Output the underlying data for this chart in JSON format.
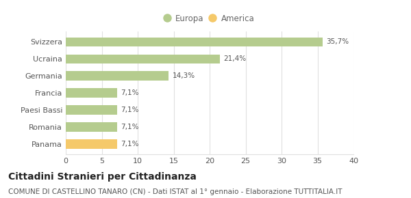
{
  "categories": [
    "Svizzera",
    "Ucraina",
    "Germania",
    "Francia",
    "Paesi Bassi",
    "Romania",
    "Panama"
  ],
  "values": [
    35.7,
    21.4,
    14.3,
    7.1,
    7.1,
    7.1,
    7.1
  ],
  "labels": [
    "35,7%",
    "21,4%",
    "14,3%",
    "7,1%",
    "7,1%",
    "7,1%",
    "7,1%"
  ],
  "colors": [
    "#b5cc8e",
    "#b5cc8e",
    "#b5cc8e",
    "#b5cc8e",
    "#b5cc8e",
    "#b5cc8e",
    "#f5c96a"
  ],
  "legend_items": [
    {
      "label": "Europa",
      "color": "#b5cc8e"
    },
    {
      "label": "America",
      "color": "#f5c96a"
    }
  ],
  "xlim": [
    0,
    40
  ],
  "xticks": [
    0,
    5,
    10,
    15,
    20,
    25,
    30,
    35,
    40
  ],
  "title": "Cittadini Stranieri per Cittadinanza",
  "subtitle": "COMUNE DI CASTELLINO TANARO (CN) - Dati ISTAT al 1° gennaio - Elaborazione TUTTITALIA.IT",
  "background_color": "#ffffff",
  "grid_color": "#e0e0e0",
  "bar_height": 0.55,
  "title_fontsize": 10,
  "subtitle_fontsize": 7.5,
  "tick_fontsize": 8,
  "label_fontsize": 7.5,
  "legend_fontsize": 8.5
}
